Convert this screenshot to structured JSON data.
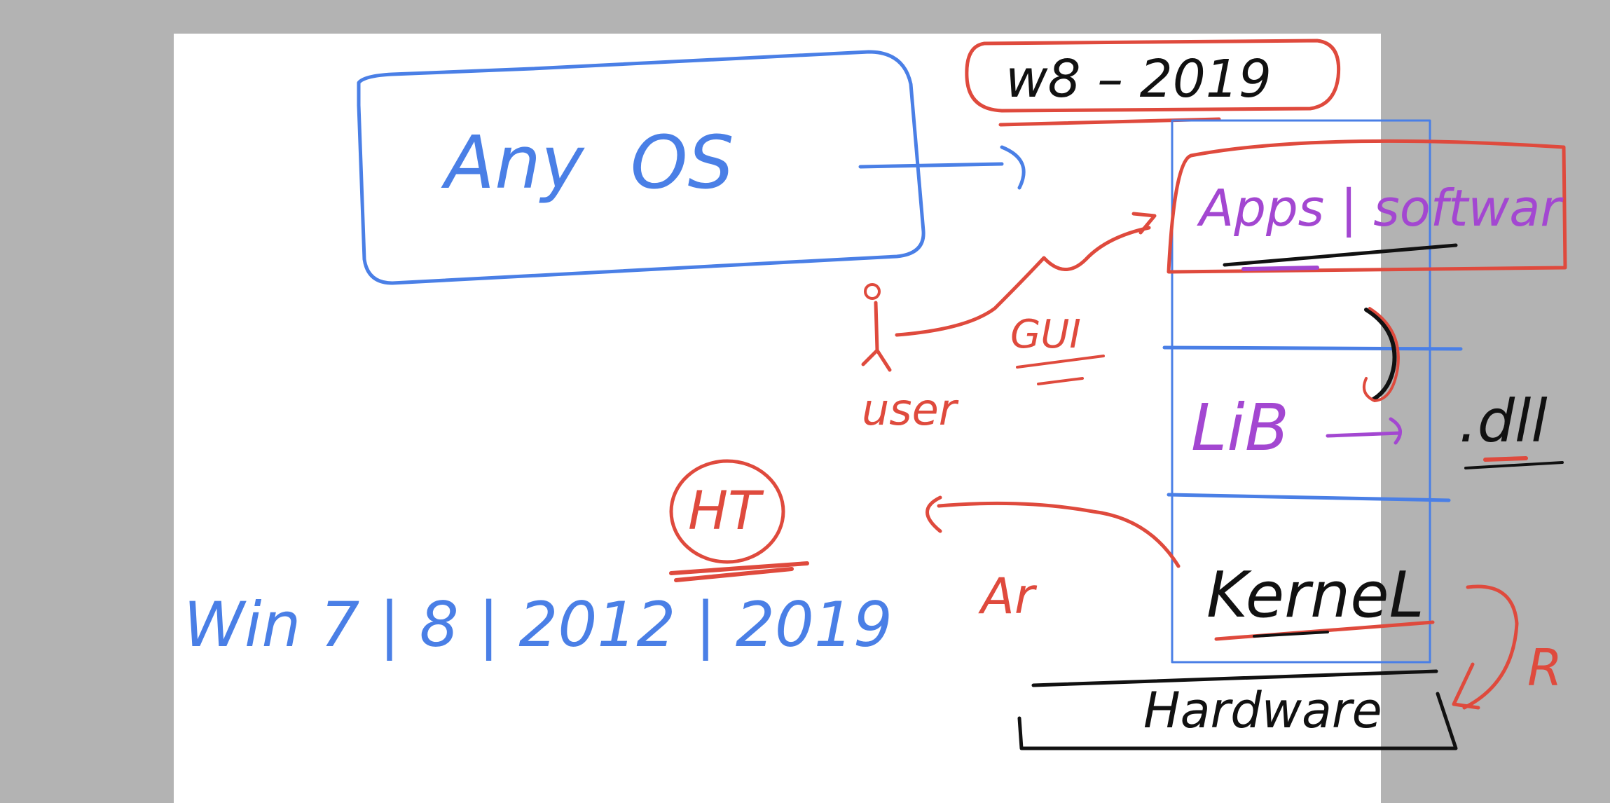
{
  "colors": {
    "background": "#b3b3b3",
    "page": "#ffffff",
    "blue_ink": "#4a7fe6",
    "red_ink": "#df4a3d",
    "purple_ink": "#a347d1",
    "black_ink": "#111111"
  },
  "notes": {
    "any_os": "Any  OS",
    "w8_2019": "w8 – 2019",
    "apps_software": "Apps | softwar",
    "user": "user",
    "gui": "GUI",
    "lib": "LiB",
    "dll": ".dll",
    "ht": "HT",
    "win_versions": "Win 7 | 8 | 2012 | 2019",
    "ar": "Ar",
    "kernel": "KerneL",
    "hardware": "Hardware",
    "r": "R"
  }
}
